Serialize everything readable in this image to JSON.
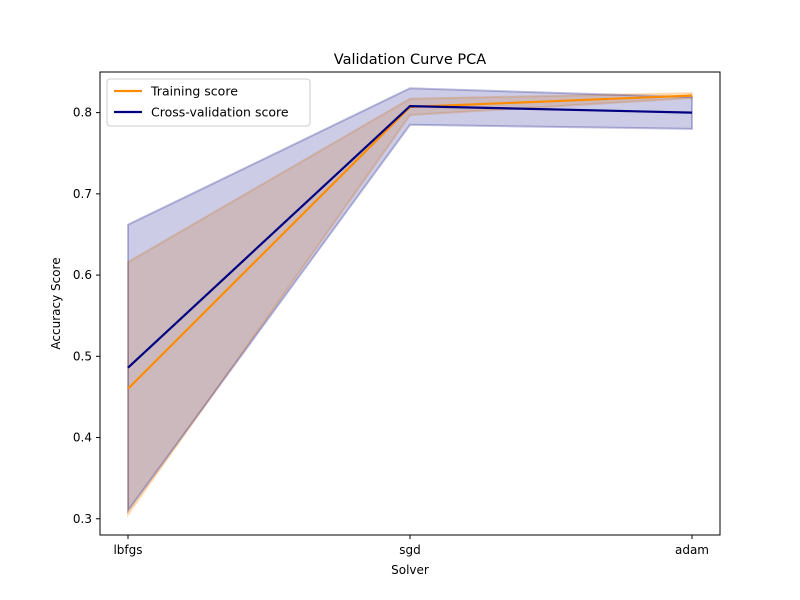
{
  "chart_data": {
    "type": "line",
    "title": "Validation Curve PCA",
    "xlabel": "Solver",
    "ylabel": "Accuracy Score",
    "categories": [
      "lbfgs",
      "sgd",
      "adam"
    ],
    "ylim": [
      0.28,
      0.85
    ],
    "yticks": [
      0.3,
      0.4,
      0.5,
      0.6,
      0.7,
      0.8
    ],
    "grid": false,
    "legend_position": "upper-left",
    "series": [
      {
        "name": "Training score",
        "color": "#ff8c00",
        "values": [
          0.46,
          0.807,
          0.821
        ],
        "lower": [
          0.305,
          0.797,
          0.818
        ],
        "upper": [
          0.616,
          0.817,
          0.824
        ]
      },
      {
        "name": "Cross-validation score",
        "color": "#000080",
        "values": [
          0.486,
          0.808,
          0.8
        ],
        "lower": [
          0.31,
          0.785,
          0.78
        ],
        "upper": [
          0.662,
          0.83,
          0.819
        ]
      }
    ]
  }
}
